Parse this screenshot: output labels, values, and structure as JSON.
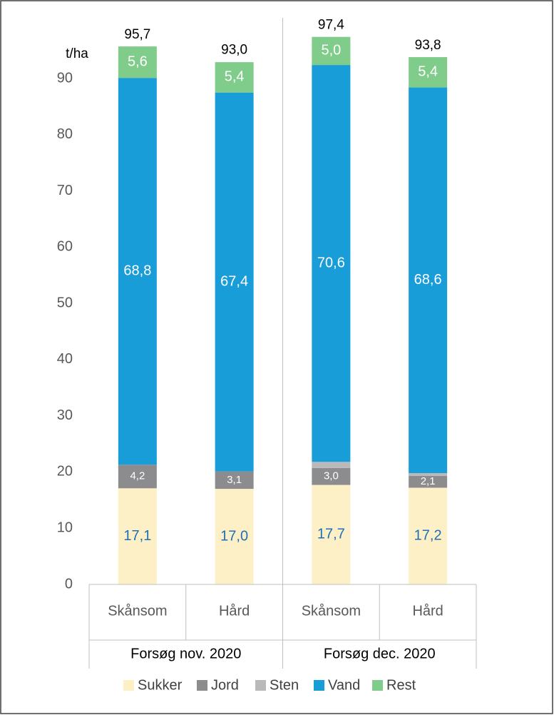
{
  "chart_data": {
    "type": "stacked_bar",
    "y_label": "t/ha",
    "categories": [
      "Skånsom",
      "Hård",
      "Skånsom",
      "Hård"
    ],
    "groups": [
      "Forsøg nov. 2020",
      "Forsøg dec. 2020"
    ],
    "ylim": [
      0,
      100
    ],
    "yticks": [
      0,
      10,
      20,
      30,
      40,
      50,
      60,
      70,
      80,
      90
    ],
    "series": [
      {
        "name": "Sukker",
        "color": "#fdf0c6",
        "label_color": "#1f6fb5",
        "values": [
          17.1,
          17.0,
          17.7,
          17.2
        ],
        "value_labels": [
          "17,1",
          "17,0",
          "17,7",
          "17,2"
        ]
      },
      {
        "name": "Jord",
        "color": "#8c8c8e",
        "label_color": "#ffffff",
        "values": [
          4.2,
          3.1,
          3.0,
          2.1
        ],
        "value_labels": [
          "4,2",
          "3,1",
          "3,0",
          "2,1"
        ]
      },
      {
        "name": "Sten",
        "color": "#b9b9bb",
        "label_color": "#ffffff",
        "values": [
          0.0,
          0.0,
          1.1,
          0.5
        ],
        "value_labels": [
          "0,0",
          "0,0",
          "1,1",
          "0,5"
        ]
      },
      {
        "name": "Vand",
        "color": "#199dd9",
        "label_color": "#ffffff",
        "values": [
          68.8,
          67.4,
          70.6,
          68.6
        ],
        "value_labels": [
          "68,8",
          "67,4",
          "70,6",
          "68,6"
        ]
      },
      {
        "name": "Rest",
        "color": "#80cc8a",
        "label_color": "#ffffff",
        "values": [
          5.6,
          5.4,
          5.0,
          5.4
        ],
        "value_labels": [
          "5,6",
          "5,4",
          "5,0",
          "5,4"
        ]
      }
    ],
    "totals": [
      95.7,
      93.0,
      97.4,
      93.8
    ],
    "total_labels": [
      "95,7",
      "93,0",
      "97,4",
      "93,8"
    ],
    "legend": "bottom"
  }
}
